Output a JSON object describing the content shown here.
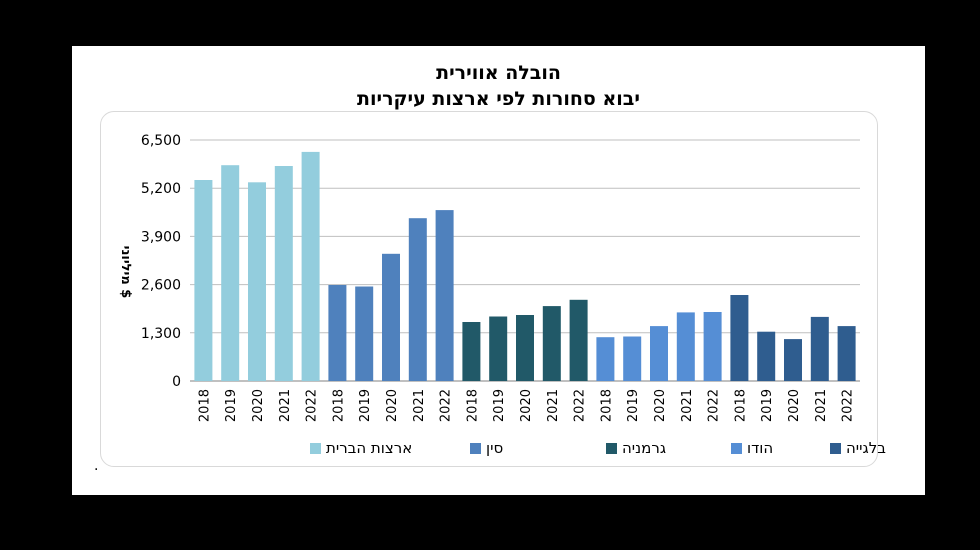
{
  "title": {
    "line1": "הובלה אווירית",
    "line2": "יבוא סחורות לפי ארצות עיקריות"
  },
  "footnote": ".",
  "chart_data": {
    "type": "bar",
    "ylabel": "מיליוני $",
    "ylim": [
      0,
      6500
    ],
    "yticks": [
      0,
      1300,
      2600,
      3900,
      5200,
      6500
    ],
    "ytick_labels": [
      "0",
      "1,300",
      "2,600",
      "3,900",
      "5,200",
      "6,500"
    ],
    "grid": true,
    "legend_position": "bottom",
    "categories": [
      "2018",
      "2019",
      "2020",
      "2021",
      "2022"
    ],
    "series": [
      {
        "name": "ארצות הברית",
        "color": "#93cddd",
        "values": [
          5420,
          5820,
          5360,
          5800,
          6180
        ]
      },
      {
        "name": "סין",
        "color": "#4f81bd",
        "values": [
          2590,
          2550,
          3430,
          4390,
          4610
        ]
      },
      {
        "name": "גרמניה",
        "color": "#215968",
        "values": [
          1590,
          1740,
          1780,
          2020,
          2190
        ]
      },
      {
        "name": "הודו",
        "color": "#558ed5",
        "values": [
          1180,
          1200,
          1480,
          1850,
          1860
        ]
      },
      {
        "name": "בלגייה",
        "color": "#2f5d8f",
        "values": [
          2320,
          1330,
          1130,
          1730,
          1480
        ]
      }
    ]
  }
}
